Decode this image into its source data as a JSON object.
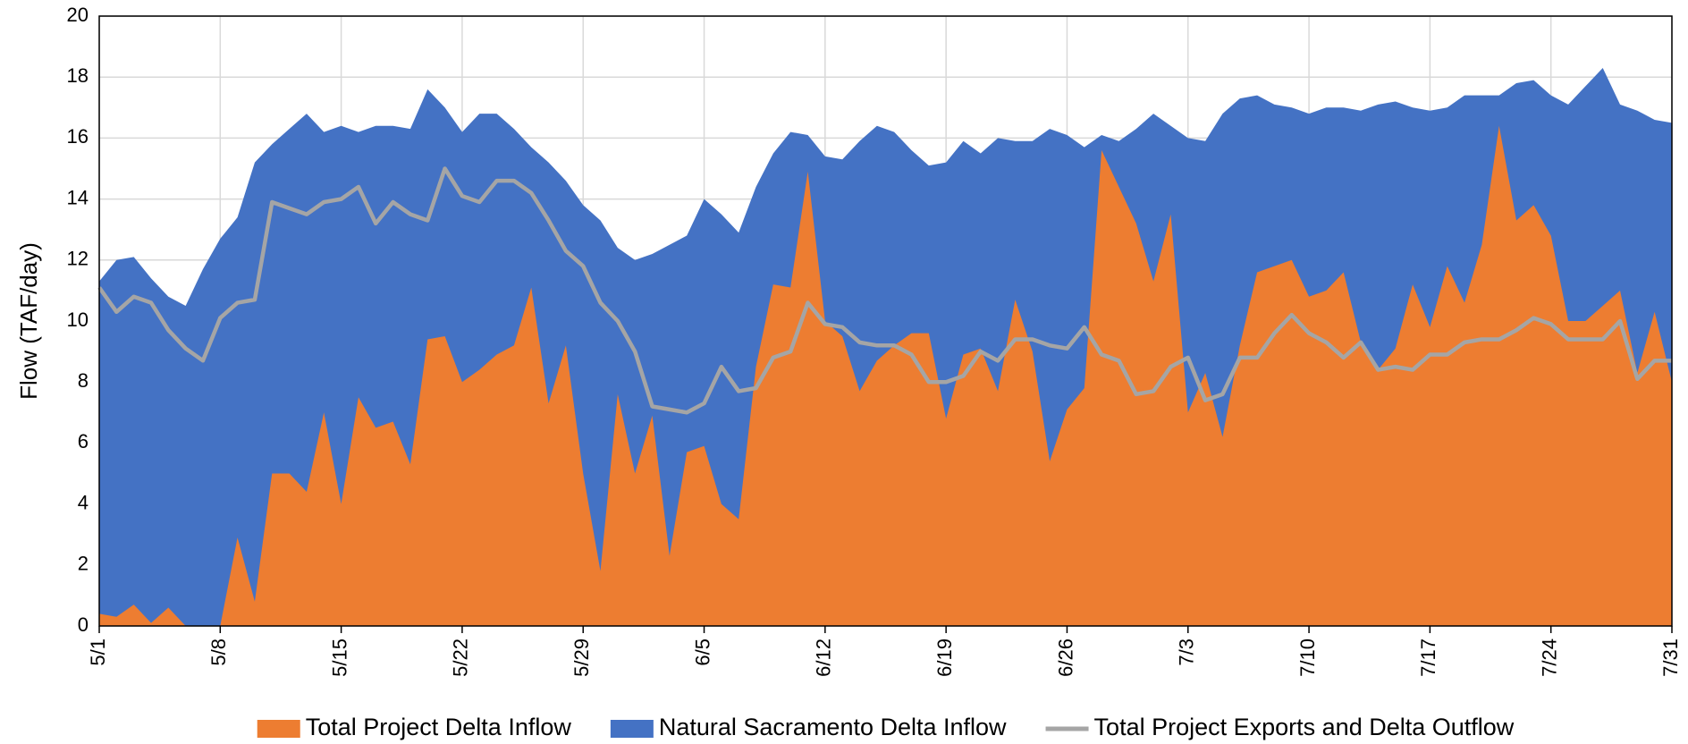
{
  "chart_data": {
    "type": "area",
    "y_label": "Flow (TAF/day)",
    "categories": [
      "5/1",
      null,
      null,
      null,
      null,
      null,
      null,
      "5/8",
      null,
      null,
      null,
      null,
      null,
      null,
      "5/15",
      null,
      null,
      null,
      null,
      null,
      null,
      "5/22",
      null,
      null,
      null,
      null,
      null,
      null,
      "5/29",
      null,
      null,
      null,
      null,
      null,
      null,
      "6/5",
      null,
      null,
      null,
      null,
      null,
      null,
      "6/12",
      null,
      null,
      null,
      null,
      null,
      null,
      "6/19",
      null,
      null,
      null,
      null,
      null,
      null,
      "6/26",
      null,
      null,
      null,
      null,
      null,
      null,
      "7/3",
      null,
      null,
      null,
      null,
      null,
      null,
      "7/10",
      null,
      null,
      null,
      null,
      null,
      null,
      "7/17",
      null,
      null,
      null,
      null,
      null,
      null,
      "7/24",
      null,
      null,
      null,
      null,
      null,
      null,
      "7/31"
    ],
    "series": [
      {
        "name": "Natural Sacramento Delta Inflow",
        "type": "area",
        "color": "#4472c4",
        "values": [
          11.3,
          12.0,
          12.1,
          11.4,
          10.8,
          10.5,
          11.7,
          12.7,
          13.4,
          15.2,
          15.8,
          16.3,
          16.8,
          16.2,
          16.4,
          16.2,
          16.4,
          16.4,
          16.3,
          17.6,
          17.0,
          16.2,
          16.8,
          16.8,
          16.3,
          15.7,
          15.2,
          14.6,
          13.8,
          13.3,
          12.4,
          12.0,
          12.2,
          12.5,
          12.8,
          14.0,
          13.5,
          12.9,
          14.4,
          15.5,
          16.2,
          16.1,
          15.4,
          15.3,
          15.9,
          16.4,
          16.2,
          15.6,
          15.1,
          15.2,
          15.9,
          15.5,
          16.0,
          15.9,
          15.9,
          16.3,
          16.1,
          15.7,
          16.1,
          15.9,
          16.3,
          16.8,
          16.4,
          16.0,
          15.9,
          16.8,
          17.3,
          17.4,
          17.1,
          17.0,
          16.8,
          17.0,
          17.0,
          16.9,
          17.1,
          17.2,
          17.0,
          16.9,
          17.0,
          17.4,
          17.4,
          17.4,
          17.8,
          17.9,
          17.4,
          17.1,
          17.7,
          18.3,
          17.1,
          16.9,
          16.6,
          16.5
        ]
      },
      {
        "name": "Total Project Delta Inflow",
        "type": "area",
        "color": "#ed7d31",
        "values": [
          0.4,
          0.3,
          0.7,
          0.1,
          0.6,
          0,
          0,
          0,
          2.9,
          0.8,
          5.0,
          5.0,
          4.4,
          7.0,
          4.0,
          7.5,
          6.5,
          6.7,
          5.3,
          9.4,
          9.5,
          8.0,
          8.4,
          8.9,
          9.2,
          11.1,
          7.3,
          9.2,
          5.0,
          1.8,
          7.6,
          5.0,
          6.9,
          2.3,
          5.7,
          5.9,
          4.0,
          3.5,
          8.5,
          11.2,
          11.1,
          14.9,
          10.0,
          9.5,
          7.7,
          8.7,
          9.2,
          9.6,
          9.6,
          6.8,
          8.9,
          9.1,
          7.7,
          10.7,
          9.0,
          5.4,
          7.1,
          7.8,
          15.6,
          14.4,
          13.2,
          11.3,
          13.5,
          7.0,
          8.3,
          6.2,
          9.2,
          11.6,
          11.8,
          12.0,
          10.8,
          11.0,
          11.6,
          9.3,
          8.4,
          9.1,
          11.2,
          9.8,
          11.8,
          10.6,
          12.5,
          16.4,
          13.3,
          13.8,
          12.8,
          10.0,
          10.0,
          10.5,
          11.0,
          8.3,
          10.3,
          8.0
        ]
      },
      {
        "name": "Total Project Exports and Delta Outflow",
        "type": "line",
        "color": "#a5a5a5",
        "values": [
          11.1,
          10.3,
          10.8,
          10.6,
          9.7,
          9.1,
          8.7,
          10.1,
          10.6,
          10.7,
          13.9,
          13.7,
          13.5,
          13.9,
          14.0,
          14.4,
          13.2,
          13.9,
          13.5,
          13.3,
          15.0,
          14.1,
          13.9,
          14.6,
          14.6,
          14.2,
          13.3,
          12.3,
          11.8,
          10.6,
          10.0,
          9.0,
          7.2,
          7.1,
          7.0,
          7.3,
          8.5,
          7.7,
          7.8,
          8.8,
          9.0,
          10.6,
          9.9,
          9.8,
          9.3,
          9.2,
          9.2,
          8.9,
          8.0,
          8.0,
          8.2,
          9.0,
          8.7,
          9.4,
          9.4,
          9.2,
          9.1,
          9.8,
          8.9,
          8.7,
          7.6,
          7.7,
          8.5,
          8.8,
          7.4,
          7.6,
          8.8,
          8.8,
          9.6,
          10.2,
          9.6,
          9.3,
          8.8,
          9.3,
          8.4,
          8.5,
          8.4,
          8.9,
          8.9,
          9.3,
          9.4,
          9.4,
          9.7,
          10.1,
          9.9,
          9.4,
          9.4,
          9.4,
          10.0,
          8.1,
          8.7,
          8.7
        ]
      }
    ],
    "legend_order": [
      1,
      0,
      2
    ],
    "ylim": [
      0,
      20
    ],
    "yticks": [
      0,
      2,
      4,
      6,
      8,
      10,
      12,
      14,
      16,
      18,
      20
    ],
    "grid": true,
    "legend": "bottom"
  }
}
